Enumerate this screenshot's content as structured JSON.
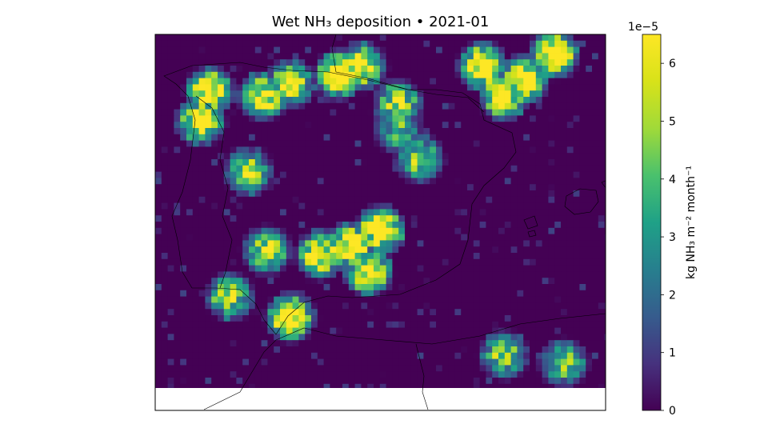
{
  "chart_data": {
    "type": "heatmap",
    "title": "Wet NH₃ deposition  •  2021-01",
    "colorbar": {
      "label": "kg NH₃ m⁻² month⁻¹",
      "scale_label": "1e−5",
      "colormap": "viridis",
      "range": [
        0,
        6.5
      ],
      "ticks": [
        0,
        1,
        2,
        3,
        4,
        5,
        6
      ],
      "tick_labels": [
        "0",
        "1",
        "2",
        "3",
        "4",
        "5",
        "6"
      ]
    },
    "grid": false,
    "missing_data_color": "#ffffff",
    "coastline_color": "#000000",
    "hotspots": [
      {
        "lon": -4.0,
        "lat": 43.1,
        "value": 6.5
      },
      {
        "lon": -3.2,
        "lat": 43.3,
        "value": 5.5
      },
      {
        "lon": 0.8,
        "lat": 43.3,
        "value": 6.5
      },
      {
        "lon": 2.2,
        "lat": 43.0,
        "value": 6.5
      },
      {
        "lon": 3.2,
        "lat": 43.6,
        "value": 6.5
      },
      {
        "lon": 1.5,
        "lat": 42.6,
        "value": 6.0
      },
      {
        "lon": -8.3,
        "lat": 42.7,
        "value": 6.5
      },
      {
        "lon": -8.6,
        "lat": 42.0,
        "value": 6.0
      },
      {
        "lon": -6.5,
        "lat": 42.6,
        "value": 5.5
      },
      {
        "lon": -5.6,
        "lat": 42.9,
        "value": 5.0
      },
      {
        "lon": -2.0,
        "lat": 42.4,
        "value": 4.5
      },
      {
        "lon": -1.3,
        "lat": 41.1,
        "value": 4.0
      },
      {
        "lon": -2.6,
        "lat": 39.4,
        "value": 6.5
      },
      {
        "lon": -3.6,
        "lat": 39.0,
        "value": 6.0
      },
      {
        "lon": -4.6,
        "lat": 38.8,
        "value": 5.5
      },
      {
        "lon": -3.0,
        "lat": 38.4,
        "value": 6.0
      },
      {
        "lon": -6.4,
        "lat": 38.9,
        "value": 4.5
      },
      {
        "lon": -5.6,
        "lat": 37.3,
        "value": 6.5
      },
      {
        "lon": -7.6,
        "lat": 37.8,
        "value": 4.0
      },
      {
        "lon": -7.0,
        "lat": 40.8,
        "value": 4.0
      },
      {
        "lon": 1.5,
        "lat": 36.4,
        "value": 4.0
      },
      {
        "lon": 3.5,
        "lat": 36.2,
        "value": 3.5
      },
      {
        "lon": -2.0,
        "lat": 41.8,
        "value": 3.0
      }
    ]
  }
}
